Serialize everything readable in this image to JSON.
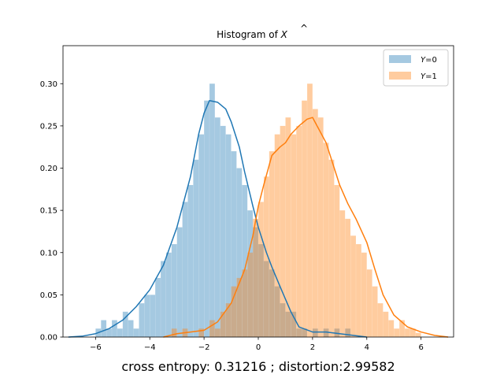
{
  "chart_data": {
    "type": "bar",
    "title": "Histogram of X̂",
    "title_text": "Histogram of ",
    "title_symbol": "X",
    "title_accent": "^",
    "xlabel": "cross entropy: 0.31216 ; distortion:2.99582",
    "ylabel": "",
    "xlim": [
      -7.2,
      7.2
    ],
    "ylim": [
      0,
      0.345
    ],
    "x_ticks": [
      -6,
      -4,
      -2,
      0,
      2,
      4,
      6
    ],
    "x_tick_labels": [
      "−6",
      "−4",
      "−2",
      "0",
      "2",
      "4",
      "6"
    ],
    "y_ticks": [
      0.0,
      0.05,
      0.1,
      0.15,
      0.2,
      0.25,
      0.3
    ],
    "y_tick_labels": [
      "0.00",
      "0.05",
      "0.10",
      "0.15",
      "0.20",
      "0.25",
      "0.30"
    ],
    "grid": false,
    "legend_position": "top-right",
    "series": [
      {
        "name": "Y=0",
        "legend_var": "Y",
        "legend_eq": "=0",
        "color": "#1f77b4",
        "bar_alpha": 0.4,
        "bin_width": 0.196,
        "bins": [
          [
            -5.9,
            0.01
          ],
          [
            -5.7,
            0.02
          ],
          [
            -5.5,
            0.01
          ],
          [
            -5.3,
            0.02
          ],
          [
            -5.1,
            0.01
          ],
          [
            -4.9,
            0.03
          ],
          [
            -4.7,
            0.02
          ],
          [
            -4.5,
            0.01
          ],
          [
            -4.3,
            0.04
          ],
          [
            -4.1,
            0.05
          ],
          [
            -3.9,
            0.05
          ],
          [
            -3.7,
            0.07
          ],
          [
            -3.5,
            0.09
          ],
          [
            -3.3,
            0.1
          ],
          [
            -3.1,
            0.11
          ],
          [
            -2.9,
            0.13
          ],
          [
            -2.7,
            0.16
          ],
          [
            -2.5,
            0.18
          ],
          [
            -2.3,
            0.21
          ],
          [
            -2.1,
            0.24
          ],
          [
            -1.9,
            0.28
          ],
          [
            -1.7,
            0.3
          ],
          [
            -1.5,
            0.26
          ],
          [
            -1.3,
            0.25
          ],
          [
            -1.1,
            0.24
          ],
          [
            -0.9,
            0.22
          ],
          [
            -0.7,
            0.2
          ],
          [
            -0.5,
            0.18
          ],
          [
            -0.3,
            0.15
          ],
          [
            -0.1,
            0.13
          ],
          [
            0.1,
            0.11
          ],
          [
            0.3,
            0.09
          ],
          [
            0.5,
            0.08
          ],
          [
            0.7,
            0.06
          ],
          [
            0.9,
            0.04
          ],
          [
            1.1,
            0.03
          ],
          [
            1.3,
            0.03
          ],
          [
            1.5,
            0.01
          ],
          [
            1.7,
            0.01
          ],
          [
            2.1,
            0.01
          ],
          [
            2.5,
            0.01
          ],
          [
            2.9,
            0.01
          ],
          [
            3.3,
            0.01
          ]
        ],
        "kde": [
          [
            -7,
            0.0
          ],
          [
            -6.5,
            0.001
          ],
          [
            -6,
            0.004
          ],
          [
            -5.5,
            0.01
          ],
          [
            -5,
            0.02
          ],
          [
            -4.5,
            0.036
          ],
          [
            -4,
            0.056
          ],
          [
            -3.5,
            0.085
          ],
          [
            -3,
            0.13
          ],
          [
            -2.5,
            0.19
          ],
          [
            -2.2,
            0.24
          ],
          [
            -2,
            0.265
          ],
          [
            -1.8,
            0.28
          ],
          [
            -1.5,
            0.278
          ],
          [
            -1.2,
            0.27
          ],
          [
            -1,
            0.255
          ],
          [
            -0.7,
            0.225
          ],
          [
            -0.5,
            0.195
          ],
          [
            -0.2,
            0.155
          ],
          [
            0,
            0.13
          ],
          [
            0.3,
            0.1
          ],
          [
            0.5,
            0.083
          ],
          [
            0.8,
            0.06
          ],
          [
            1,
            0.045
          ],
          [
            1.2,
            0.03
          ],
          [
            1.5,
            0.012
          ],
          [
            2,
            0.006
          ],
          [
            2.5,
            0.006
          ],
          [
            3,
            0.004
          ],
          [
            3.5,
            0.002
          ],
          [
            4,
            0.0
          ]
        ]
      },
      {
        "name": "Y=1",
        "legend_var": "Y",
        "legend_eq": "=1",
        "color": "#ff7f0e",
        "bar_alpha": 0.4,
        "bin_width": 0.196,
        "bins": [
          [
            -3.1,
            0.01
          ],
          [
            -2.7,
            0.01
          ],
          [
            -2.1,
            0.01
          ],
          [
            -1.7,
            0.02
          ],
          [
            -1.5,
            0.01
          ],
          [
            -1.3,
            0.03
          ],
          [
            -1.1,
            0.04
          ],
          [
            -0.9,
            0.06
          ],
          [
            -0.7,
            0.07
          ],
          [
            -0.5,
            0.08
          ],
          [
            -0.3,
            0.1
          ],
          [
            -0.1,
            0.14
          ],
          [
            0.1,
            0.16
          ],
          [
            0.3,
            0.19
          ],
          [
            0.5,
            0.22
          ],
          [
            0.7,
            0.24
          ],
          [
            0.9,
            0.25
          ],
          [
            1.1,
            0.26
          ],
          [
            1.3,
            0.24
          ],
          [
            1.5,
            0.25
          ],
          [
            1.7,
            0.28
          ],
          [
            1.9,
            0.3
          ],
          [
            2.1,
            0.27
          ],
          [
            2.3,
            0.26
          ],
          [
            2.5,
            0.23
          ],
          [
            2.7,
            0.21
          ],
          [
            2.9,
            0.18
          ],
          [
            3.1,
            0.15
          ],
          [
            3.3,
            0.14
          ],
          [
            3.5,
            0.12
          ],
          [
            3.7,
            0.11
          ],
          [
            3.9,
            0.1
          ],
          [
            4.1,
            0.08
          ],
          [
            4.3,
            0.06
          ],
          [
            4.5,
            0.04
          ],
          [
            4.7,
            0.03
          ],
          [
            4.9,
            0.02
          ],
          [
            5.1,
            0.01
          ],
          [
            5.3,
            0.02
          ],
          [
            5.5,
            0.01
          ],
          [
            5.7,
            0.01
          ],
          [
            5.9,
            0.005
          ]
        ],
        "kde": [
          [
            -3.5,
            0.0
          ],
          [
            -3,
            0.004
          ],
          [
            -2.5,
            0.006
          ],
          [
            -2,
            0.008
          ],
          [
            -1.5,
            0.018
          ],
          [
            -1,
            0.04
          ],
          [
            -0.5,
            0.08
          ],
          [
            -0.2,
            0.12
          ],
          [
            0,
            0.155
          ],
          [
            0.2,
            0.18
          ],
          [
            0.5,
            0.215
          ],
          [
            0.8,
            0.225
          ],
          [
            1,
            0.23
          ],
          [
            1.2,
            0.24
          ],
          [
            1.5,
            0.25
          ],
          [
            1.8,
            0.258
          ],
          [
            2,
            0.26
          ],
          [
            2.2,
            0.248
          ],
          [
            2.5,
            0.23
          ],
          [
            2.8,
            0.2
          ],
          [
            3,
            0.18
          ],
          [
            3.3,
            0.158
          ],
          [
            3.6,
            0.14
          ],
          [
            4,
            0.112
          ],
          [
            4.3,
            0.08
          ],
          [
            4.6,
            0.05
          ],
          [
            5,
            0.026
          ],
          [
            5.5,
            0.012
          ],
          [
            6,
            0.006
          ],
          [
            6.5,
            0.002
          ],
          [
            7,
            0.0
          ]
        ]
      }
    ]
  }
}
